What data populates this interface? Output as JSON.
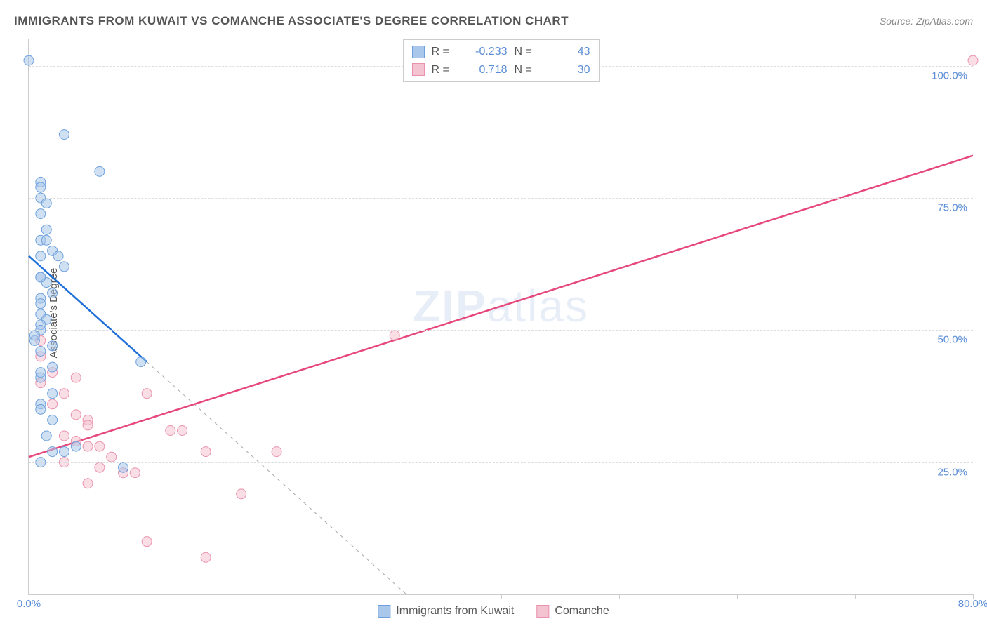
{
  "title": "IMMIGRANTS FROM KUWAIT VS COMANCHE ASSOCIATE'S DEGREE CORRELATION CHART",
  "source": "Source: ZipAtlas.com",
  "watermark": {
    "bold": "ZIP",
    "light": "atlas"
  },
  "chart": {
    "type": "scatter",
    "xlim": [
      0,
      80
    ],
    "ylim": [
      0,
      105
    ],
    "x_ticks": [
      0,
      10,
      20,
      30,
      40,
      50,
      60,
      70,
      80
    ],
    "x_tick_labels": {
      "0": "0.0%",
      "80": "80.0%"
    },
    "y_ticks": [
      25,
      50,
      75,
      100
    ],
    "y_tick_labels": {
      "25": "25.0%",
      "50": "50.0%",
      "75": "75.0%",
      "100": "100.0%"
    },
    "y_gridlines": [
      25,
      50,
      75,
      100
    ],
    "yaxis_label": "Associate's Degree",
    "background_color": "#ffffff",
    "grid_color": "#dddddd",
    "axis_color": "#cccccc",
    "marker_radius": 7,
    "marker_opacity": 0.55,
    "line_width_solid": 2.5,
    "line_width_dashed": 1
  },
  "series": [
    {
      "name": "Immigrants from Kuwait",
      "color_fill": "#a9c7ea",
      "color_stroke": "#6da0dd",
      "color_line": "#1e6fd9",
      "color_dash": "#aaaaaa",
      "R": "-0.233",
      "N": "43",
      "reg_solid": {
        "x1": 0,
        "y1": 64,
        "x2": 10,
        "y2": 44
      },
      "reg_dashed": {
        "x1": 10,
        "y1": 44,
        "x2": 32,
        "y2": 0
      },
      "points": [
        [
          0,
          101
        ],
        [
          3,
          87
        ],
        [
          6,
          80
        ],
        [
          1,
          78
        ],
        [
          1,
          77
        ],
        [
          1,
          75
        ],
        [
          1.5,
          74
        ],
        [
          1,
          72
        ],
        [
          1.5,
          69
        ],
        [
          1,
          67
        ],
        [
          1.5,
          67
        ],
        [
          2,
          65
        ],
        [
          1,
          64
        ],
        [
          2.5,
          64
        ],
        [
          3,
          62
        ],
        [
          1,
          60
        ],
        [
          1.5,
          59
        ],
        [
          2,
          57
        ],
        [
          1,
          56
        ],
        [
          1,
          55
        ],
        [
          1,
          53
        ],
        [
          1.5,
          52
        ],
        [
          1,
          51
        ],
        [
          1,
          50
        ],
        [
          0.5,
          48
        ],
        [
          2,
          47
        ],
        [
          1,
          46
        ],
        [
          9.5,
          44
        ],
        [
          1,
          41
        ],
        [
          2,
          38
        ],
        [
          1,
          36
        ],
        [
          1,
          35
        ],
        [
          2,
          33
        ],
        [
          1.5,
          30
        ],
        [
          4,
          28
        ],
        [
          3,
          27
        ],
        [
          8,
          24
        ],
        [
          1,
          25
        ],
        [
          2,
          27
        ],
        [
          1,
          42
        ],
        [
          2,
          43
        ],
        [
          1,
          60
        ],
        [
          0.5,
          49
        ]
      ]
    },
    {
      "name": "Comanche",
      "color_fill": "#f4c3d2",
      "color_stroke": "#ea92ad",
      "color_line": "#e6487c",
      "color_dash": "#aaaaaa",
      "R": "0.718",
      "N": "30",
      "reg_solid": {
        "x1": 0,
        "y1": 26,
        "x2": 80,
        "y2": 83
      },
      "reg_dashed": null,
      "points": [
        [
          80,
          101
        ],
        [
          31,
          49
        ],
        [
          1,
          48
        ],
        [
          1,
          45
        ],
        [
          2,
          42
        ],
        [
          4,
          41
        ],
        [
          1,
          40
        ],
        [
          3,
          38
        ],
        [
          10,
          38
        ],
        [
          2,
          36
        ],
        [
          4,
          34
        ],
        [
          5,
          33
        ],
        [
          5,
          32
        ],
        [
          12,
          31
        ],
        [
          13,
          31
        ],
        [
          3,
          30
        ],
        [
          4,
          29
        ],
        [
          5,
          28
        ],
        [
          6,
          28
        ],
        [
          15,
          27
        ],
        [
          21,
          27
        ],
        [
          7,
          26
        ],
        [
          3,
          25
        ],
        [
          6,
          24
        ],
        [
          8,
          23
        ],
        [
          9,
          23
        ],
        [
          5,
          21
        ],
        [
          18,
          19
        ],
        [
          10,
          10
        ],
        [
          15,
          7
        ]
      ]
    }
  ],
  "legend_top": {
    "r_label": "R =",
    "n_label": "N ="
  },
  "legend_bottom": [
    {
      "swatch_fill": "#a9c7ea",
      "swatch_stroke": "#6da0dd",
      "label": "Immigrants from Kuwait"
    },
    {
      "swatch_fill": "#f4c3d2",
      "swatch_stroke": "#ea92ad",
      "label": "Comanche"
    }
  ]
}
